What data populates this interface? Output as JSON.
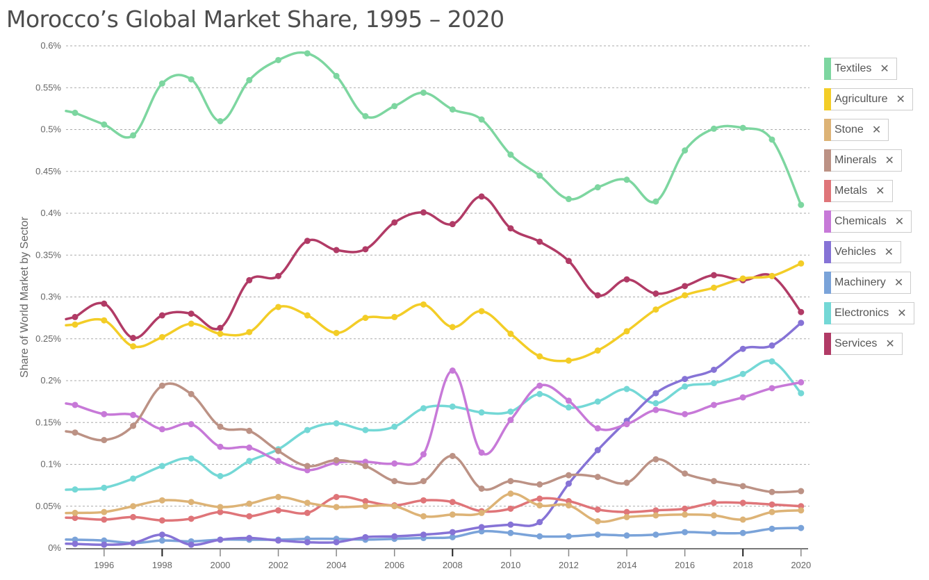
{
  "title": "Morocco’s Global Market Share, 1995 – 2020",
  "chart_data": {
    "type": "line",
    "title": "Morocco’s Global Market Share, 1995 – 2020",
    "xlabel": "",
    "ylabel": "Share of World Market by Sector",
    "x": [
      1995,
      1996,
      1997,
      1998,
      1999,
      2000,
      2001,
      2002,
      2003,
      2004,
      2005,
      2006,
      2007,
      2008,
      2009,
      2010,
      2011,
      2012,
      2013,
      2014,
      2015,
      2016,
      2017,
      2018,
      2019,
      2020
    ],
    "x_ticks": [
      "1996",
      "1998",
      "2000",
      "2002",
      "2004",
      "2006",
      "2008",
      "2010",
      "2012",
      "2014",
      "2016",
      "2018",
      "2020"
    ],
    "y_ticks": [
      "0%",
      "0.05%",
      "0.1%",
      "0.15%",
      "0.2%",
      "0.25%",
      "0.3%",
      "0.35%",
      "0.4%",
      "0.45%",
      "0.5%",
      "0.55%",
      "0.6%"
    ],
    "ylim": [
      0,
      0.6
    ],
    "y_unit": "%",
    "grid": true,
    "legend_position": "right",
    "series": [
      {
        "name": "Textiles",
        "color": "#7dd6a0",
        "values": [
          0.52,
          0.506,
          0.493,
          0.555,
          0.56,
          0.51,
          0.559,
          0.583,
          0.591,
          0.564,
          0.516,
          0.528,
          0.544,
          0.524,
          0.512,
          0.47,
          0.445,
          0.417,
          0.431,
          0.44,
          0.414,
          0.475,
          0.501,
          0.502,
          0.488,
          0.41
        ]
      },
      {
        "name": "Agriculture",
        "color": "#f3cd27",
        "values": [
          0.267,
          0.272,
          0.241,
          0.252,
          0.268,
          0.256,
          0.258,
          0.288,
          0.278,
          0.257,
          0.275,
          0.276,
          0.291,
          0.264,
          0.283,
          0.256,
          0.229,
          0.224,
          0.236,
          0.259,
          0.285,
          0.302,
          0.311,
          0.322,
          0.325,
          0.34
        ]
      },
      {
        "name": "Stone",
        "color": "#ddb376",
        "values": [
          0.042,
          0.043,
          0.05,
          0.057,
          0.055,
          0.049,
          0.053,
          0.061,
          0.054,
          0.049,
          0.05,
          0.05,
          0.038,
          0.04,
          0.042,
          0.065,
          0.051,
          0.051,
          0.032,
          0.037,
          0.039,
          0.04,
          0.039,
          0.034,
          0.043,
          0.045
        ]
      },
      {
        "name": "Minerals",
        "color": "#bc9285",
        "values": [
          0.138,
          0.129,
          0.146,
          0.194,
          0.184,
          0.145,
          0.14,
          0.116,
          0.098,
          0.105,
          0.098,
          0.08,
          0.08,
          0.11,
          0.071,
          0.08,
          0.076,
          0.087,
          0.085,
          0.078,
          0.106,
          0.089,
          0.08,
          0.074,
          0.067,
          0.068
        ]
      },
      {
        "name": "Metals",
        "color": "#df7579",
        "values": [
          0.036,
          0.034,
          0.037,
          0.033,
          0.035,
          0.043,
          0.038,
          0.045,
          0.042,
          0.061,
          0.056,
          0.051,
          0.057,
          0.055,
          0.044,
          0.047,
          0.059,
          0.056,
          0.046,
          0.043,
          0.045,
          0.047,
          0.054,
          0.054,
          0.052,
          0.05
        ]
      },
      {
        "name": "Chemicals",
        "color": "#c779d8",
        "values": [
          0.171,
          0.16,
          0.159,
          0.142,
          0.148,
          0.121,
          0.12,
          0.104,
          0.093,
          0.102,
          0.103,
          0.101,
          0.112,
          0.212,
          0.114,
          0.153,
          0.194,
          0.176,
          0.143,
          0.148,
          0.165,
          0.16,
          0.171,
          0.18,
          0.191,
          0.198
        ]
      },
      {
        "name": "Vehicles",
        "color": "#8673d6",
        "values": [
          0.005,
          0.004,
          0.006,
          0.016,
          0.004,
          0.01,
          0.012,
          0.009,
          0.007,
          0.007,
          0.013,
          0.014,
          0.016,
          0.019,
          0.025,
          0.028,
          0.031,
          0.077,
          0.117,
          0.152,
          0.185,
          0.202,
          0.213,
          0.238,
          0.242,
          0.269
        ]
      },
      {
        "name": "Machinery",
        "color": "#7aa3d9",
        "values": [
          0.01,
          0.009,
          0.006,
          0.009,
          0.008,
          0.01,
          0.01,
          0.01,
          0.011,
          0.011,
          0.01,
          0.011,
          0.012,
          0.013,
          0.02,
          0.018,
          0.014,
          0.014,
          0.016,
          0.015,
          0.016,
          0.019,
          0.018,
          0.018,
          0.023,
          0.024
        ]
      },
      {
        "name": "Electronics",
        "color": "#74d8d6",
        "values": [
          0.07,
          0.072,
          0.083,
          0.098,
          0.107,
          0.086,
          0.104,
          0.118,
          0.141,
          0.149,
          0.141,
          0.145,
          0.167,
          0.169,
          0.162,
          0.163,
          0.184,
          0.168,
          0.175,
          0.19,
          0.173,
          0.193,
          0.197,
          0.208,
          0.223,
          0.185
        ]
      },
      {
        "name": "Services",
        "color": "#b13b66",
        "values": [
          0.276,
          0.292,
          0.251,
          0.278,
          0.28,
          0.263,
          0.32,
          0.325,
          0.367,
          0.356,
          0.357,
          0.389,
          0.401,
          0.387,
          0.42,
          0.382,
          0.366,
          0.343,
          0.302,
          0.321,
          0.304,
          0.313,
          0.326,
          0.32,
          0.325,
          0.282
        ]
      }
    ]
  },
  "legend": {
    "close_glyph": "✕"
  }
}
